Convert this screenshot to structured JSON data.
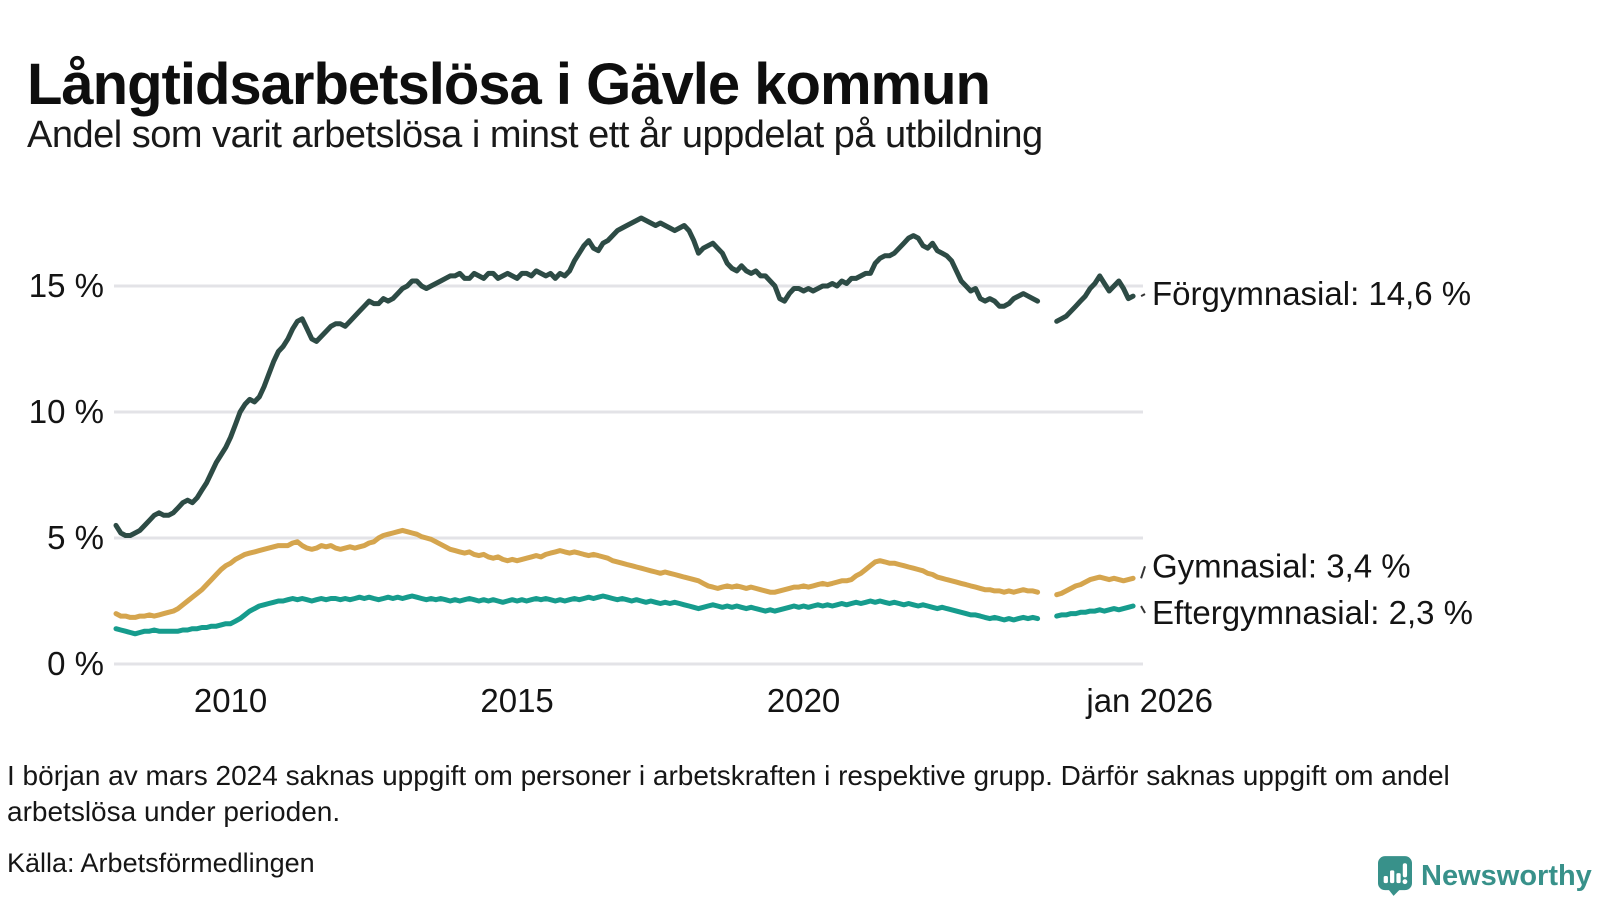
{
  "header": {
    "title": "Långtidsarbetslösa i Gävle kommun",
    "subtitle": "Andel som varit arbetslösa i minst ett år uppdelat på utbildning"
  },
  "footnote": "I början av mars 2024 saknas uppgift om personer i arbetskraften i respektive grupp. Därför saknas uppgift om andel arbetslösa under perioden.",
  "source_label": "Källa: Arbetsförmedlingen",
  "branding": {
    "name": "Newsworthy",
    "color": "#38918a",
    "icon": "newsworthy-bubble-chart-icon"
  },
  "chart_data": {
    "type": "line",
    "title": "Långtidsarbetslösa i Gävle kommun",
    "subtitle": "Andel som varit arbetslösa i minst ett år uppdelat på utbildning",
    "unit": "%",
    "x_start": "2008-01",
    "x_interval": "monthly",
    "missing_data_period": "2024-03 till 2024-05",
    "xlim": [
      2008.0,
      2026.3
    ],
    "ylim": [
      0,
      18.6
    ],
    "grid": true,
    "grid_color": "#e3e3e7",
    "text_color": "#141414",
    "legend_position": "right-end-labels",
    "y_ticks": [
      {
        "value": 0,
        "label": "0 %"
      },
      {
        "value": 5,
        "label": "5 %"
      },
      {
        "value": 10,
        "label": "10 %"
      },
      {
        "value": 15,
        "label": "15 %"
      }
    ],
    "x_ticks": [
      {
        "year": 2010.0,
        "label": "2010"
      },
      {
        "year": 2015.0,
        "label": "2015"
      },
      {
        "year": 2020.0,
        "label": "2020"
      },
      {
        "year": 2026.04,
        "label": "jan 2026"
      }
    ],
    "series": [
      {
        "name": "Förgymnasial",
        "last_value_label": "14,6 %",
        "label": "Förgymnasial: 14,6 %",
        "color": "#2d4b45",
        "label_dy": -2,
        "values": [
          5.5,
          5.2,
          5.1,
          5.1,
          5.2,
          5.3,
          5.5,
          5.7,
          5.9,
          6.0,
          5.9,
          5.9,
          6.0,
          6.2,
          6.4,
          6.5,
          6.4,
          6.6,
          6.9,
          7.2,
          7.6,
          8.0,
          8.3,
          8.6,
          9.0,
          9.5,
          10.0,
          10.3,
          10.5,
          10.4,
          10.6,
          11.0,
          11.5,
          12.0,
          12.4,
          12.6,
          12.9,
          13.3,
          13.6,
          13.7,
          13.3,
          12.9,
          12.8,
          13.0,
          13.2,
          13.4,
          13.5,
          13.5,
          13.4,
          13.6,
          13.8,
          14.0,
          14.2,
          14.4,
          14.3,
          14.3,
          14.5,
          14.4,
          14.5,
          14.7,
          14.9,
          15.0,
          15.2,
          15.2,
          15.0,
          14.9,
          15.0,
          15.1,
          15.2,
          15.3,
          15.4,
          15.4,
          15.5,
          15.3,
          15.3,
          15.5,
          15.4,
          15.3,
          15.5,
          15.5,
          15.3,
          15.4,
          15.5,
          15.4,
          15.3,
          15.5,
          15.5,
          15.4,
          15.6,
          15.5,
          15.4,
          15.5,
          15.3,
          15.5,
          15.4,
          15.6,
          16.0,
          16.3,
          16.6,
          16.8,
          16.5,
          16.4,
          16.7,
          16.8,
          17.0,
          17.2,
          17.3,
          17.4,
          17.5,
          17.6,
          17.7,
          17.6,
          17.5,
          17.4,
          17.5,
          17.4,
          17.3,
          17.2,
          17.3,
          17.4,
          17.2,
          16.8,
          16.3,
          16.5,
          16.6,
          16.7,
          16.5,
          16.3,
          15.9,
          15.7,
          15.6,
          15.8,
          15.6,
          15.5,
          15.6,
          15.4,
          15.4,
          15.2,
          15.0,
          14.5,
          14.4,
          14.7,
          14.9,
          14.9,
          14.8,
          14.9,
          14.8,
          14.9,
          15.0,
          15.0,
          15.1,
          15.0,
          15.2,
          15.1,
          15.3,
          15.3,
          15.4,
          15.5,
          15.5,
          15.9,
          16.1,
          16.2,
          16.2,
          16.3,
          16.5,
          16.7,
          16.9,
          17.0,
          16.9,
          16.6,
          16.5,
          16.7,
          16.4,
          16.3,
          16.2,
          16.0,
          15.6,
          15.2,
          15.0,
          14.8,
          14.9,
          14.5,
          14.4,
          14.5,
          14.4,
          14.2,
          14.2,
          14.3,
          14.5,
          14.6,
          14.7,
          14.6,
          14.5,
          14.4,
          null,
          null,
          null,
          13.6,
          13.7,
          13.8,
          14.0,
          14.2,
          14.4,
          14.6,
          14.9,
          15.1,
          15.4,
          15.1,
          14.8,
          15.0,
          15.2,
          14.9,
          14.5,
          14.6
        ]
      },
      {
        "name": "Gymnasial",
        "last_value_label": "3,4 %",
        "label": "Gymnasial:  3,4 %",
        "color": "#d5a54e",
        "label_dy": -12,
        "values": [
          2.0,
          1.9,
          1.9,
          1.85,
          1.85,
          1.9,
          1.9,
          1.95,
          1.9,
          1.95,
          2.0,
          2.05,
          2.1,
          2.2,
          2.35,
          2.5,
          2.65,
          2.8,
          2.95,
          3.15,
          3.35,
          3.55,
          3.75,
          3.9,
          4.0,
          4.15,
          4.25,
          4.35,
          4.4,
          4.45,
          4.5,
          4.55,
          4.6,
          4.65,
          4.7,
          4.7,
          4.7,
          4.8,
          4.85,
          4.7,
          4.6,
          4.55,
          4.6,
          4.7,
          4.65,
          4.7,
          4.6,
          4.55,
          4.6,
          4.65,
          4.6,
          4.65,
          4.7,
          4.8,
          4.85,
          5.0,
          5.1,
          5.15,
          5.2,
          5.25,
          5.3,
          5.25,
          5.2,
          5.15,
          5.05,
          5.0,
          4.95,
          4.85,
          4.75,
          4.65,
          4.55,
          4.5,
          4.45,
          4.4,
          4.45,
          4.35,
          4.3,
          4.35,
          4.25,
          4.2,
          4.25,
          4.15,
          4.1,
          4.15,
          4.1,
          4.15,
          4.2,
          4.25,
          4.3,
          4.25,
          4.35,
          4.4,
          4.45,
          4.5,
          4.45,
          4.4,
          4.45,
          4.4,
          4.35,
          4.3,
          4.35,
          4.3,
          4.25,
          4.2,
          4.1,
          4.05,
          4.0,
          3.95,
          3.9,
          3.85,
          3.8,
          3.75,
          3.7,
          3.65,
          3.6,
          3.65,
          3.6,
          3.55,
          3.5,
          3.45,
          3.4,
          3.35,
          3.3,
          3.2,
          3.1,
          3.05,
          3.0,
          3.05,
          3.1,
          3.05,
          3.1,
          3.05,
          3.0,
          3.05,
          3.0,
          2.95,
          2.9,
          2.85,
          2.85,
          2.9,
          2.95,
          3.0,
          3.05,
          3.05,
          3.1,
          3.05,
          3.1,
          3.15,
          3.2,
          3.15,
          3.2,
          3.25,
          3.3,
          3.3,
          3.35,
          3.5,
          3.6,
          3.75,
          3.9,
          4.05,
          4.1,
          4.05,
          4.0,
          4.0,
          3.95,
          3.9,
          3.85,
          3.8,
          3.75,
          3.7,
          3.6,
          3.55,
          3.45,
          3.4,
          3.35,
          3.3,
          3.25,
          3.2,
          3.15,
          3.1,
          3.05,
          3.0,
          2.95,
          2.95,
          2.9,
          2.9,
          2.85,
          2.9,
          2.85,
          2.9,
          2.95,
          2.9,
          2.9,
          2.85,
          null,
          null,
          null,
          2.75,
          2.8,
          2.9,
          3.0,
          3.1,
          3.15,
          3.25,
          3.35,
          3.4,
          3.45,
          3.4,
          3.35,
          3.4,
          3.35,
          3.3,
          3.35,
          3.4
        ]
      },
      {
        "name": "Eftergymnasial",
        "last_value_label": "2,3 %",
        "label": "Eftergymnasial:  2,3 %",
        "color": "#169c8d",
        "label_dy": 7,
        "values": [
          1.4,
          1.35,
          1.3,
          1.25,
          1.2,
          1.25,
          1.3,
          1.3,
          1.35,
          1.3,
          1.3,
          1.3,
          1.3,
          1.3,
          1.35,
          1.35,
          1.4,
          1.4,
          1.45,
          1.45,
          1.5,
          1.5,
          1.55,
          1.6,
          1.6,
          1.7,
          1.8,
          1.95,
          2.1,
          2.2,
          2.3,
          2.35,
          2.4,
          2.45,
          2.5,
          2.5,
          2.55,
          2.6,
          2.55,
          2.6,
          2.55,
          2.5,
          2.55,
          2.6,
          2.55,
          2.6,
          2.6,
          2.55,
          2.6,
          2.55,
          2.6,
          2.65,
          2.6,
          2.65,
          2.6,
          2.55,
          2.6,
          2.65,
          2.6,
          2.65,
          2.6,
          2.65,
          2.7,
          2.65,
          2.6,
          2.55,
          2.6,
          2.55,
          2.6,
          2.55,
          2.5,
          2.55,
          2.5,
          2.55,
          2.6,
          2.55,
          2.5,
          2.55,
          2.5,
          2.55,
          2.5,
          2.45,
          2.5,
          2.55,
          2.5,
          2.55,
          2.5,
          2.55,
          2.6,
          2.55,
          2.6,
          2.55,
          2.5,
          2.55,
          2.5,
          2.55,
          2.6,
          2.55,
          2.6,
          2.65,
          2.6,
          2.65,
          2.7,
          2.65,
          2.6,
          2.55,
          2.6,
          2.55,
          2.5,
          2.55,
          2.5,
          2.45,
          2.5,
          2.45,
          2.4,
          2.45,
          2.4,
          2.45,
          2.4,
          2.35,
          2.3,
          2.25,
          2.2,
          2.25,
          2.3,
          2.35,
          2.3,
          2.25,
          2.3,
          2.25,
          2.3,
          2.25,
          2.2,
          2.25,
          2.2,
          2.15,
          2.1,
          2.15,
          2.1,
          2.15,
          2.2,
          2.25,
          2.3,
          2.25,
          2.3,
          2.25,
          2.3,
          2.35,
          2.3,
          2.35,
          2.3,
          2.35,
          2.4,
          2.35,
          2.4,
          2.45,
          2.4,
          2.45,
          2.5,
          2.45,
          2.5,
          2.45,
          2.4,
          2.45,
          2.4,
          2.35,
          2.4,
          2.35,
          2.3,
          2.35,
          2.3,
          2.25,
          2.2,
          2.25,
          2.2,
          2.15,
          2.1,
          2.05,
          2.0,
          1.95,
          1.95,
          1.9,
          1.85,
          1.8,
          1.85,
          1.8,
          1.75,
          1.8,
          1.75,
          1.8,
          1.85,
          1.8,
          1.85,
          1.8,
          null,
          null,
          null,
          1.9,
          1.95,
          1.95,
          2.0,
          2.0,
          2.05,
          2.05,
          2.1,
          2.1,
          2.15,
          2.1,
          2.15,
          2.2,
          2.15,
          2.2,
          2.25,
          2.3
        ]
      }
    ]
  }
}
